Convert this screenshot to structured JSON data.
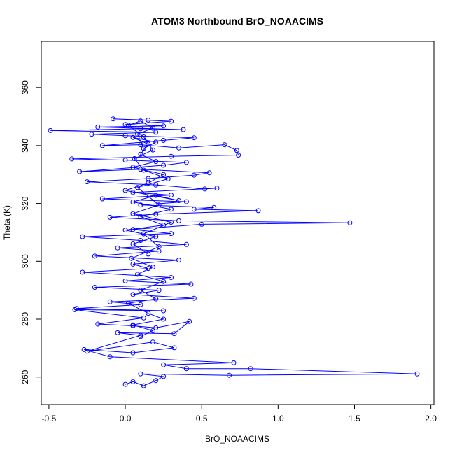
{
  "chart_data": {
    "type": "line",
    "title": "ATOM3 Northbound BrO_NOAACIMS",
    "xlabel": "BrO_NOAACIMS",
    "ylabel": "Theta (K)",
    "xlim": [
      -0.55,
      2.02
    ],
    "ylim": [
      250.5,
      376
    ],
    "xticks": [
      -0.5,
      0.0,
      0.5,
      1.0,
      1.5,
      2.0
    ],
    "xtick_labels": [
      "-0.5",
      "0.0",
      "0.5",
      "1.0",
      "1.5",
      "2.0"
    ],
    "yticks": [
      260,
      280,
      300,
      320,
      340,
      360
    ],
    "ytick_labels": [
      "260",
      "280",
      "300",
      "320",
      "340",
      "360"
    ],
    "grid": false,
    "legend": "none",
    "series_color": "#0000ff",
    "marker": "open-circle",
    "series": [
      {
        "values": [
          [
            0.0,
            257.5
          ],
          [
            0.05,
            258.4
          ],
          [
            0.12,
            257.0
          ],
          [
            0.2,
            258.8
          ],
          [
            0.25,
            260.2
          ],
          [
            0.1,
            261.1
          ],
          [
            0.68,
            260.6
          ],
          [
            1.91,
            261.1
          ],
          [
            0.82,
            262.9
          ],
          [
            0.4,
            262.9
          ],
          [
            0.25,
            264.2
          ],
          [
            0.71,
            264.9
          ],
          [
            -0.1,
            267.0
          ],
          [
            -0.27,
            269.5
          ],
          [
            0.05,
            268.4
          ],
          [
            0.32,
            270.1
          ],
          [
            0.18,
            272.1
          ],
          [
            -0.25,
            268.9
          ],
          [
            0.1,
            274.4
          ],
          [
            -0.05,
            275.3
          ],
          [
            0.32,
            275.0
          ],
          [
            0.42,
            279.2
          ],
          [
            0.2,
            277.0
          ],
          [
            0.05,
            277.7
          ],
          [
            -0.18,
            278.3
          ],
          [
            0.12,
            280.4
          ],
          [
            -0.33,
            283.3
          ],
          [
            0.25,
            282.9
          ],
          [
            -0.32,
            283.7
          ],
          [
            0.1,
            285.0
          ],
          [
            -0.1,
            286.0
          ],
          [
            0.45,
            287.2
          ],
          [
            0.05,
            288.5
          ],
          [
            0.22,
            290.0
          ],
          [
            -0.2,
            291.0
          ],
          [
            0.43,
            292.1
          ],
          [
            0.0,
            293.2
          ],
          [
            0.3,
            294.4
          ],
          [
            -0.28,
            296.2
          ],
          [
            0.15,
            297.5
          ],
          [
            0.05,
            299.0
          ],
          [
            0.35,
            300.4
          ],
          [
            -0.2,
            301.8
          ],
          [
            0.22,
            303.5
          ],
          [
            -0.05,
            304.6
          ],
          [
            0.4,
            305.8
          ],
          [
            0.1,
            307.2
          ],
          [
            -0.28,
            308.5
          ],
          [
            0.3,
            309.6
          ],
          [
            0.05,
            311.0
          ],
          [
            0.5,
            312.8
          ],
          [
            1.47,
            313.3
          ],
          [
            0.35,
            314.0
          ],
          [
            -0.1,
            315.2
          ],
          [
            0.2,
            316.3
          ],
          [
            0.87,
            317.5
          ],
          [
            0.45,
            318.0
          ],
          [
            0.58,
            318.6
          ],
          [
            0.1,
            319.5
          ],
          [
            0.4,
            320.6
          ],
          [
            -0.15,
            321.6
          ],
          [
            0.3,
            322.9
          ],
          [
            0.05,
            323.8
          ],
          [
            0.6,
            325.3
          ],
          [
            0.52,
            325.0
          ],
          [
            0.2,
            326.4
          ],
          [
            -0.25,
            327.5
          ],
          [
            0.15,
            328.6
          ],
          [
            0.45,
            329.8
          ],
          [
            0.55,
            330.6
          ],
          [
            0.1,
            331.8
          ],
          [
            -0.3,
            331.0
          ],
          [
            0.25,
            333.2
          ],
          [
            0.4,
            334.2
          ],
          [
            0.0,
            335.0
          ],
          [
            -0.35,
            335.4
          ],
          [
            0.3,
            336.3
          ],
          [
            0.74,
            336.7
          ],
          [
            0.73,
            338.3
          ],
          [
            0.65,
            340.3
          ],
          [
            0.35,
            339.2
          ],
          [
            0.1,
            340.3
          ],
          [
            -0.15,
            340.0
          ],
          [
            0.25,
            341.8
          ],
          [
            0.45,
            342.7
          ],
          [
            0.0,
            343.4
          ],
          [
            -0.22,
            343.9
          ],
          [
            0.2,
            344.6
          ],
          [
            -0.49,
            345.2
          ],
          [
            0.1,
            345.8
          ],
          [
            0.38,
            345.5
          ],
          [
            -0.18,
            346.4
          ],
          [
            0.25,
            346.8
          ],
          [
            0.0,
            347.3
          ],
          [
            0.3,
            348.4
          ],
          [
            -0.08,
            349.2
          ],
          [
            0.15,
            348.8
          ]
        ]
      },
      {
        "values": [
          [
            0.15,
            302.5
          ],
          [
            0.05,
            306.0
          ],
          [
            0.2,
            308.5
          ],
          [
            0.0,
            310.8
          ],
          [
            0.25,
            312.5
          ],
          [
            0.1,
            315.5
          ],
          [
            0.3,
            318.0
          ],
          [
            0.05,
            320.5
          ],
          [
            0.2,
            322.8
          ],
          [
            0.35,
            321.0
          ],
          [
            0.0,
            324.5
          ],
          [
            0.15,
            327.0
          ],
          [
            0.25,
            330.0
          ],
          [
            0.05,
            332.5
          ],
          [
            0.2,
            334.5
          ],
          [
            0.1,
            337.0
          ],
          [
            0.15,
            340.5
          ],
          [
            0.05,
            342.8
          ],
          [
            0.2,
            341.2
          ],
          [
            0.12,
            339.0
          ],
          [
            0.08,
            344.0
          ],
          [
            0.18,
            346.0
          ],
          [
            0.1,
            348.5
          ],
          [
            0.02,
            347.0
          ],
          [
            0.12,
            343.0
          ],
          [
            0.18,
            338.5
          ],
          [
            0.06,
            335.5
          ],
          [
            0.12,
            331.5
          ],
          [
            0.28,
            328.5
          ],
          [
            0.08,
            325.5
          ],
          [
            0.22,
            319.5
          ],
          [
            0.05,
            316.5
          ],
          [
            0.3,
            313.5
          ],
          [
            0.12,
            309.5
          ],
          [
            0.22,
            305.0
          ],
          [
            0.04,
            301.0
          ],
          [
            0.18,
            298.0
          ],
          [
            0.08,
            295.5
          ],
          [
            0.25,
            293.0
          ],
          [
            0.1,
            290.0
          ],
          [
            0.2,
            287.0
          ],
          [
            0.02,
            285.5
          ],
          [
            0.15,
            282.0
          ],
          [
            0.25,
            280.0
          ],
          [
            0.05,
            278.0
          ],
          [
            0.18,
            276.0
          ],
          [
            0.1,
            274.0
          ]
        ]
      }
    ]
  }
}
